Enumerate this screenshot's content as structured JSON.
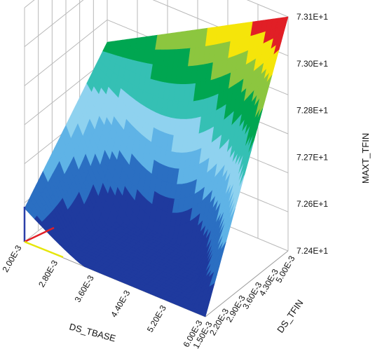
{
  "chart_data": {
    "type": "surface",
    "title": "",
    "x_axis": {
      "label": "DS_TBASE",
      "ticks": [
        "2.00E-3",
        "2.80E-3",
        "3.60E-3",
        "4.40E-3",
        "5.20E-3",
        "6.00E-3"
      ],
      "range": [
        0.002,
        0.006
      ]
    },
    "y_axis": {
      "label": "DS_TFIN",
      "ticks": [
        "1.50E-3",
        "2.20E-3",
        "2.90E-3",
        "3.60E-3",
        "4.30E-3",
        "5.00E-3"
      ],
      "range": [
        0.0015,
        0.005
      ]
    },
    "z_axis": {
      "label": "MAXT_TFIN",
      "ticks": [
        "7.24E+1",
        "7.26E+1",
        "7.27E+1",
        "7.28E+1",
        "7.30E+1",
        "7.31E+1"
      ],
      "range": [
        72.4,
        73.1
      ]
    },
    "corner_values": {
      "tbase_min_tfin_max": 72.8,
      "tbase_max_tfin_max": 73.1,
      "tbase_max_tfin_min": 72.4,
      "tbase_min_tfin_min": 72.5
    },
    "grid": true,
    "colormap": [
      "#1f3a9e",
      "#2b6fc2",
      "#5fb3e6",
      "#8fd2ef",
      "#35c0b4",
      "#00a651",
      "#8cc63f",
      "#f5e50a",
      "#e11f26"
    ]
  }
}
